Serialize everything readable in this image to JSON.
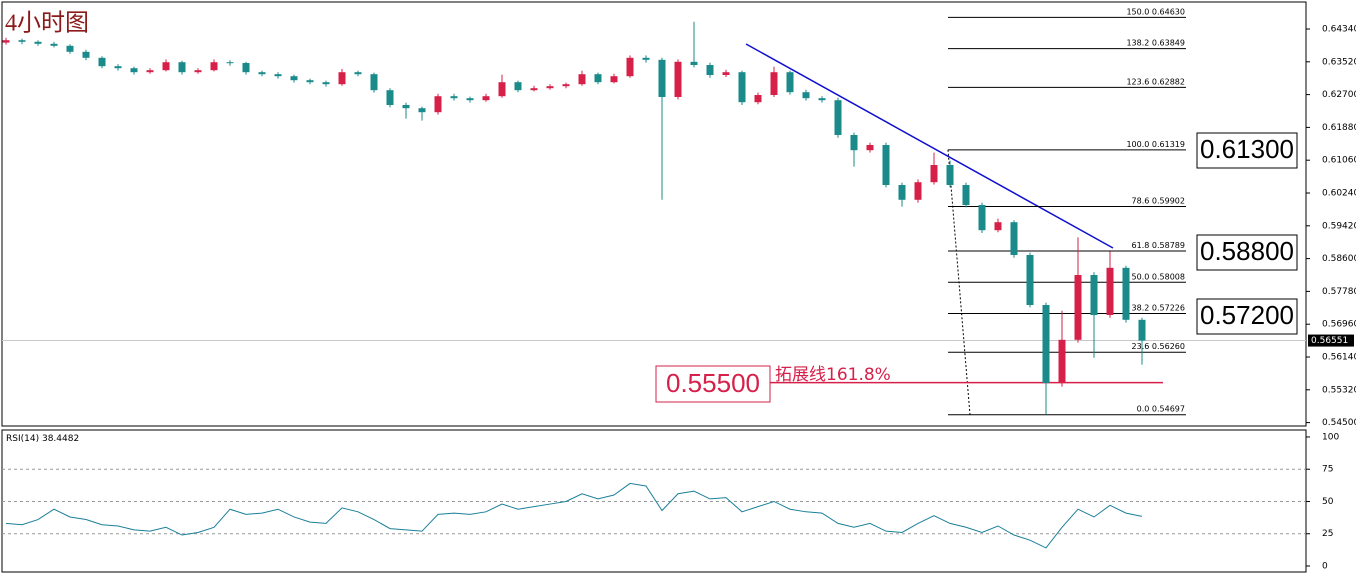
{
  "chart_data": {
    "type": "candlestick",
    "title": "4小时图",
    "up_color": "#d6204a",
    "down_color": "#1a8a8a",
    "ylim": [
      0.54415,
      0.65015
    ],
    "yticks": [
      {
        "value": 0.6434,
        "label": "0.64340"
      },
      {
        "value": 0.6352,
        "label": "0.63520"
      },
      {
        "value": 0.627,
        "label": "0.62700"
      },
      {
        "value": 0.6188,
        "label": "0.61880"
      },
      {
        "value": 0.6106,
        "label": "0.61060"
      },
      {
        "value": 0.6024,
        "label": "0.60240"
      },
      {
        "value": 0.5942,
        "label": "0.59420"
      },
      {
        "value": 0.586,
        "label": "0.58600"
      },
      {
        "value": 0.5778,
        "label": "0.57780"
      },
      {
        "value": 0.5696,
        "label": "0.56960"
      },
      {
        "value": 0.5614,
        "label": "0.56140"
      },
      {
        "value": 0.5532,
        "label": "0.55320"
      },
      {
        "value": 0.545,
        "label": "0.54500"
      }
    ],
    "current_price": {
      "value": 0.56551,
      "label": "0.56551"
    },
    "candles": [
      [
        0.64,
        0.6412,
        0.6395,
        0.6406
      ],
      [
        0.6406,
        0.641,
        0.6396,
        0.6402
      ],
      [
        0.6402,
        0.6406,
        0.6392,
        0.6397
      ],
      [
        0.6397,
        0.6402,
        0.6388,
        0.6392
      ],
      [
        0.6392,
        0.6396,
        0.6372,
        0.6377
      ],
      [
        0.6377,
        0.6382,
        0.6356,
        0.6362
      ],
      [
        0.6362,
        0.6366,
        0.6336,
        0.6341
      ],
      [
        0.6341,
        0.6346,
        0.633,
        0.6336
      ],
      [
        0.6336,
        0.634,
        0.632,
        0.6326
      ],
      [
        0.6326,
        0.6336,
        0.6322,
        0.6331
      ],
      [
        0.6331,
        0.6358,
        0.6328,
        0.6351
      ],
      [
        0.6351,
        0.6355,
        0.632,
        0.6326
      ],
      [
        0.6326,
        0.6336,
        0.6322,
        0.6331
      ],
      [
        0.6331,
        0.6358,
        0.6328,
        0.6351
      ],
      [
        0.6351,
        0.6356,
        0.6342,
        0.6349
      ],
      [
        0.6349,
        0.6352,
        0.632,
        0.6326
      ],
      [
        0.6326,
        0.633,
        0.6316,
        0.6321
      ],
      [
        0.6321,
        0.6326,
        0.631,
        0.6316
      ],
      [
        0.6316,
        0.632,
        0.63,
        0.6306
      ],
      [
        0.6306,
        0.631,
        0.6296,
        0.6301
      ],
      [
        0.6301,
        0.6305,
        0.629,
        0.6296
      ],
      [
        0.6296,
        0.6334,
        0.6292,
        0.6326
      ],
      [
        0.6326,
        0.633,
        0.6316,
        0.6321
      ],
      [
        0.6321,
        0.6325,
        0.6275,
        0.6281
      ],
      [
        0.6281,
        0.6286,
        0.6238,
        0.6244
      ],
      [
        0.6244,
        0.625,
        0.621,
        0.6236
      ],
      [
        0.6236,
        0.624,
        0.6205,
        0.6226
      ],
      [
        0.6226,
        0.6272,
        0.622,
        0.6266
      ],
      [
        0.6266,
        0.6272,
        0.6255,
        0.6261
      ],
      [
        0.6261,
        0.6265,
        0.625,
        0.6256
      ],
      [
        0.6256,
        0.6272,
        0.6252,
        0.6266
      ],
      [
        0.6266,
        0.632,
        0.6262,
        0.6301
      ],
      [
        0.6301,
        0.6305,
        0.6276,
        0.6281
      ],
      [
        0.6281,
        0.6292,
        0.6278,
        0.6286
      ],
      [
        0.6286,
        0.6296,
        0.6282,
        0.6291
      ],
      [
        0.6291,
        0.63,
        0.6286,
        0.6296
      ],
      [
        0.6296,
        0.633,
        0.6292,
        0.6321
      ],
      [
        0.6321,
        0.6325,
        0.6296,
        0.6301
      ],
      [
        0.6301,
        0.6322,
        0.6298,
        0.6316
      ],
      [
        0.6316,
        0.6368,
        0.6312,
        0.6362
      ],
      [
        0.6362,
        0.6368,
        0.635,
        0.6357
      ],
      [
        0.6357,
        0.6362,
        0.6007,
        0.6264
      ],
      [
        0.6264,
        0.6358,
        0.6258,
        0.6352
      ],
      [
        0.6352,
        0.6452,
        0.6338,
        0.6344
      ],
      [
        0.6344,
        0.635,
        0.6312,
        0.6319
      ],
      [
        0.6319,
        0.6332,
        0.6314,
        0.6326
      ],
      [
        0.6326,
        0.633,
        0.6244,
        0.6251
      ],
      [
        0.6251,
        0.6275,
        0.6246,
        0.6269
      ],
      [
        0.6269,
        0.634,
        0.6264,
        0.6326
      ],
      [
        0.6326,
        0.633,
        0.627,
        0.6276
      ],
      [
        0.6276,
        0.6282,
        0.6255,
        0.6261
      ],
      [
        0.6261,
        0.6266,
        0.625,
        0.6256
      ],
      [
        0.6256,
        0.6262,
        0.6162,
        0.6169
      ],
      [
        0.6169,
        0.6175,
        0.609,
        0.6131
      ],
      [
        0.6131,
        0.615,
        0.6125,
        0.6144
      ],
      [
        0.6144,
        0.615,
        0.6038,
        0.6044
      ],
      [
        0.6044,
        0.605,
        0.599,
        0.6007
      ],
      [
        0.6007,
        0.6058,
        0.6,
        0.6051
      ],
      [
        0.6051,
        0.6125,
        0.6045,
        0.6094
      ],
      [
        0.6094,
        0.6105,
        0.6038,
        0.6044
      ],
      [
        0.6044,
        0.605,
        0.5988,
        0.5994
      ],
      [
        0.5994,
        0.6,
        0.5924,
        0.5931
      ],
      [
        0.5931,
        0.596,
        0.5926,
        0.5951
      ],
      [
        0.5951,
        0.5956,
        0.5862,
        0.5869
      ],
      [
        0.5869,
        0.5875,
        0.5738,
        0.5744
      ],
      [
        0.5744,
        0.575,
        0.547,
        0.5549
      ],
      [
        0.5549,
        0.573,
        0.554,
        0.5657
      ],
      [
        0.5657,
        0.5913,
        0.565,
        0.5819
      ],
      [
        0.5819,
        0.5826,
        0.5612,
        0.5719
      ],
      [
        0.5719,
        0.5878,
        0.5712,
        0.5837
      ],
      [
        0.5837,
        0.5842,
        0.57,
        0.5707
      ],
      [
        0.5707,
        0.5712,
        0.5595,
        0.5655
      ]
    ],
    "fib_levels": [
      {
        "level": "150.0",
        "value": 0.6463,
        "label": "0.64630"
      },
      {
        "level": "138.2",
        "value": 0.63849,
        "label": "0.63849"
      },
      {
        "level": "123.6",
        "value": 0.62882,
        "label": "0.62882"
      },
      {
        "level": "100.0",
        "value": 0.61319,
        "label": "0.61319"
      },
      {
        "level": "78.6",
        "value": 0.59902,
        "label": "0.59902"
      },
      {
        "level": "61.8",
        "value": 0.58789,
        "label": "0.58789"
      },
      {
        "level": "50.0",
        "value": 0.58008,
        "label": "0.58008"
      },
      {
        "level": "38.2",
        "value": 0.57226,
        "label": "0.57226"
      },
      {
        "level": "23.6",
        "value": 0.5626,
        "label": "0.56260"
      },
      {
        "level": "0.0",
        "value": 0.54697,
        "label": "0.54697"
      }
    ],
    "annotations": [
      "0.61300",
      "0.58800",
      "0.57200"
    ],
    "extension": {
      "value": 0.555,
      "label": "0.55500",
      "text": "拓展线161.8%",
      "color": "#d6204a"
    },
    "rsi": {
      "name": "RSI(14)",
      "color": "#1a7f9a",
      "ylim": [
        -4.65,
        105.4
      ],
      "yticks": [
        100,
        75,
        50,
        25,
        0
      ],
      "levels": [
        75,
        50,
        25
      ],
      "values": [
        33,
        32,
        36,
        44,
        38,
        36,
        32,
        31,
        28,
        27,
        30,
        24,
        26,
        30,
        44,
        40,
        41,
        44,
        38,
        34,
        33,
        45,
        42,
        36,
        29,
        28,
        27,
        40,
        41,
        40,
        42,
        48,
        44,
        46,
        48,
        50,
        56,
        52,
        55,
        64,
        62,
        43,
        56,
        58,
        52,
        53,
        42,
        46,
        50,
        44,
        42,
        41,
        33,
        30,
        33,
        27,
        26,
        33,
        39,
        33,
        30,
        26,
        31,
        24,
        20,
        14,
        30,
        44,
        38,
        47,
        41,
        38.4482
      ]
    }
  }
}
